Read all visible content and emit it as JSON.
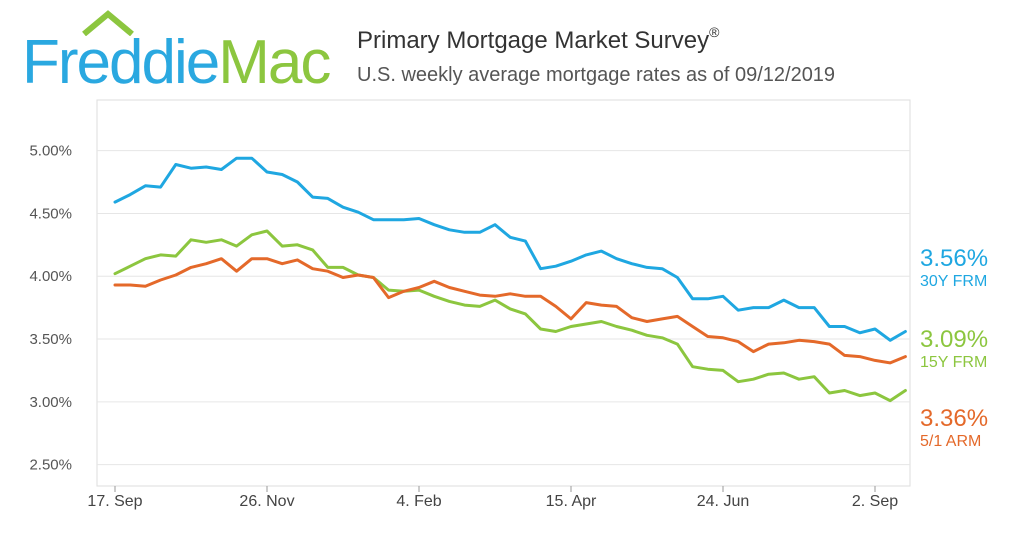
{
  "logo": {
    "part1": "Freddie",
    "part2": "Mac"
  },
  "header": {
    "title": "Primary Mortgage Market Survey",
    "title_mark": "®",
    "subtitle": "U.S. weekly average mortgage rates as of 09/12/2019"
  },
  "colors": {
    "frm30": "#1fa7e1",
    "frm15": "#8cc63f",
    "arm51": "#e4692a",
    "logo_blue": "#2aa8e0",
    "logo_green": "#8cc63f"
  },
  "series_labels": [
    {
      "value": "3.56%",
      "name": "30Y FRM"
    },
    {
      "value": "3.09%",
      "name": "15Y FRM"
    },
    {
      "value": "3.36%",
      "name": "5/1 ARM"
    }
  ],
  "chart_data": {
    "type": "line",
    "title": "Primary Mortgage Market Survey",
    "subtitle": "U.S. weekly average mortgage rates as of 09/12/2019",
    "xlabel": "",
    "ylabel": "",
    "ylim": [
      2.4,
      5.5
    ],
    "y_ticks": [
      2.5,
      3.0,
      3.5,
      4.0,
      4.5,
      5.0
    ],
    "y_tick_labels": [
      "2.50%",
      "3.00%",
      "3.50%",
      "4.00%",
      "4.50%",
      "5.00%"
    ],
    "x_tick_labels": [
      "17. Sep",
      "26. Nov",
      "4. Feb",
      "15. Apr",
      "24. Jun",
      "2. Sep"
    ],
    "x_tick_week_index": [
      0,
      10,
      20,
      30,
      40,
      50
    ],
    "grid": true,
    "legend": "right end labels",
    "series": [
      {
        "name": "30Y FRM",
        "color": "#1fa7e1",
        "values": [
          4.59,
          4.65,
          4.72,
          4.71,
          4.89,
          4.86,
          4.87,
          4.85,
          4.94,
          4.94,
          4.83,
          4.81,
          4.75,
          4.63,
          4.62,
          4.55,
          4.51,
          4.45,
          4.45,
          4.45,
          4.46,
          4.41,
          4.37,
          4.35,
          4.35,
          4.41,
          4.31,
          4.28,
          4.06,
          4.08,
          4.12,
          4.17,
          4.2,
          4.14,
          4.1,
          4.07,
          4.06,
          3.99,
          3.82,
          3.82,
          3.84,
          3.73,
          3.75,
          3.75,
          3.81,
          3.75,
          3.75,
          3.6,
          3.6,
          3.55,
          3.58,
          3.49,
          3.56
        ]
      },
      {
        "name": "15Y FRM",
        "color": "#8cc63f",
        "values": [
          4.02,
          4.08,
          4.14,
          4.17,
          4.16,
          4.29,
          4.27,
          4.29,
          4.24,
          4.33,
          4.36,
          4.24,
          4.25,
          4.21,
          4.07,
          4.07,
          4.01,
          3.99,
          3.89,
          3.88,
          3.89,
          3.84,
          3.8,
          3.77,
          3.76,
          3.81,
          3.74,
          3.7,
          3.58,
          3.56,
          3.6,
          3.62,
          3.64,
          3.6,
          3.57,
          3.53,
          3.51,
          3.46,
          3.28,
          3.26,
          3.25,
          3.16,
          3.18,
          3.22,
          3.23,
          3.18,
          3.2,
          3.07,
          3.09,
          3.05,
          3.07,
          3.01,
          3.09
        ]
      },
      {
        "name": "5/1 ARM",
        "color": "#e4692a",
        "values": [
          3.93,
          3.93,
          3.92,
          3.97,
          4.01,
          4.07,
          4.1,
          4.14,
          4.04,
          4.14,
          4.14,
          4.1,
          4.13,
          4.06,
          4.04,
          3.99,
          4.01,
          3.99,
          3.83,
          3.88,
          3.91,
          3.96,
          3.91,
          3.88,
          3.85,
          3.84,
          3.86,
          3.84,
          3.84,
          3.76,
          3.66,
          3.79,
          3.77,
          3.76,
          3.67,
          3.64,
          3.66,
          3.68,
          3.6,
          3.52,
          3.51,
          3.48,
          3.4,
          3.46,
          3.47,
          3.49,
          3.48,
          3.46,
          3.37,
          3.36,
          3.33,
          3.31,
          3.36
        ]
      }
    ]
  }
}
